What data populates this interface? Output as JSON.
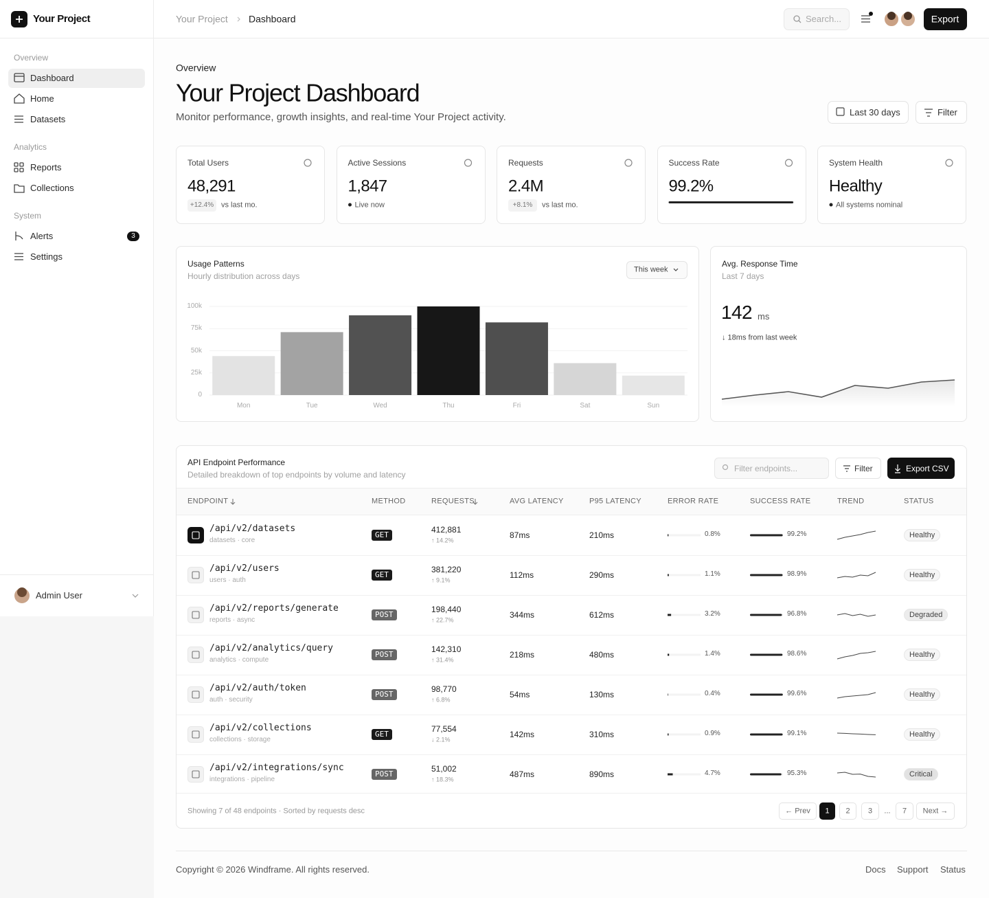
{
  "sidebar": {
    "brand": "Your Project",
    "sections": [
      {
        "title": "Overview",
        "items": [
          {
            "label": "Dashboard"
          },
          {
            "label": "Home"
          },
          {
            "label": "Datasets"
          }
        ]
      },
      {
        "title": "Analytics",
        "items": [
          {
            "label": "Reports"
          },
          {
            "label": "Collections"
          }
        ]
      },
      {
        "title": "System",
        "items": [
          {
            "label": "Alerts",
            "badge": "3"
          },
          {
            "label": "Settings"
          }
        ]
      }
    ],
    "user": "Admin User"
  },
  "header": {
    "breadcrumb": [
      "Your Project",
      "Dashboard"
    ],
    "search": "Search...",
    "export": "Export"
  },
  "page": {
    "eyebrow": "Overview",
    "title": "Your Project Dashboard",
    "subtitle": "Monitor performance, growth insights, and real-time Your Project activity.",
    "range": "Last 30 days",
    "filter": "Filter"
  },
  "stats": [
    {
      "label": "Total Users",
      "value": "48,291",
      "delta": "+12.4%",
      "note": "vs last mo."
    },
    {
      "label": "Active Sessions",
      "value": "1,847",
      "note": "Live now"
    },
    {
      "label": "Requests",
      "value": "2.4M",
      "delta": "+8.1%",
      "note": "vs last mo."
    },
    {
      "label": "Success Rate",
      "value": "99.2%"
    },
    {
      "label": "System Health",
      "value": "Healthy",
      "note": "All systems nominal"
    }
  ],
  "chart_data": [
    {
      "type": "bar",
      "title": "Usage Patterns",
      "subtitle": "Hourly distribution across days",
      "control": "This week",
      "categories": [
        "Mon",
        "Tue",
        "Wed",
        "Thu",
        "Fri",
        "Sat",
        "Sun"
      ],
      "values": [
        44000,
        71000,
        90000,
        100000,
        82000,
        36000,
        22000
      ],
      "colors": [
        "#e3e3e3",
        "#a3a3a3",
        "#525252",
        "#171717",
        "#4f4f4f",
        "#d6d6d6",
        "#e6e6e6"
      ],
      "ylim": [
        0,
        100000
      ],
      "yticks": [
        0,
        {
          "value": 25000,
          "label": "25k"
        },
        {
          "value": 50000,
          "label": "50k"
        },
        {
          "value": 75000,
          "label": "75k"
        },
        {
          "value": 100000,
          "label": "100k"
        }
      ],
      "grid": true
    },
    {
      "type": "line",
      "title": "Avg. Response Time",
      "subtitle": "Last 7 days",
      "value": "142",
      "unit": "ms",
      "note": "↓ 18ms from last week",
      "values": [
        109,
        115,
        120,
        112,
        129,
        125,
        134,
        137
      ],
      "ylim": [
        100,
        170
      ],
      "color": "#555555"
    }
  ],
  "table": {
    "title": "API Endpoint Performance",
    "subtitle": "Detailed breakdown of top endpoints by volume and latency",
    "search": "Filter endpoints...",
    "filter": "Filter",
    "export": "Export CSV",
    "columns": [
      "ENDPOINT",
      "METHOD",
      "REQUESTS",
      "AVG LATENCY",
      "P95 LATENCY",
      "ERROR RATE",
      "SUCCESS RATE",
      "TREND",
      "STATUS"
    ],
    "trend_ylim": [
      0,
      10
    ],
    "rows": [
      {
        "endpoint": "/api/v2/datasets",
        "tags": "datasets · core",
        "method": "GET",
        "requests": "412,881",
        "change": "↑ 14.2%",
        "avg": "87ms",
        "p95": "210ms",
        "error": "0.8%",
        "success": "99.2%",
        "trend": [
          2,
          3.5,
          4.5,
          5.5,
          7,
          8
        ],
        "status": "Healthy"
      },
      {
        "endpoint": "/api/v2/users",
        "tags": "users · auth",
        "method": "GET",
        "requests": "381,220",
        "change": "↑ 9.1%",
        "avg": "112ms",
        "p95": "290ms",
        "error": "1.1%",
        "success": "98.9%",
        "trend": [
          3,
          4,
          3.5,
          5,
          4.5,
          7
        ],
        "status": "Healthy"
      },
      {
        "endpoint": "/api/v2/reports/generate",
        "tags": "reports · async",
        "method": "POST",
        "requests": "198,440",
        "change": "↑ 22.7%",
        "avg": "344ms",
        "p95": "612ms",
        "error": "3.2%",
        "success": "96.8%",
        "trend": [
          5,
          6,
          4.5,
          5.5,
          4,
          5
        ],
        "status": "Degraded"
      },
      {
        "endpoint": "/api/v2/analytics/query",
        "tags": "analytics · compute",
        "method": "POST",
        "requests": "142,310",
        "change": "↑ 31.4%",
        "avg": "218ms",
        "p95": "480ms",
        "error": "1.4%",
        "success": "98.6%",
        "trend": [
          2,
          3.5,
          4.5,
          6,
          6.5,
          7.5
        ],
        "status": "Healthy"
      },
      {
        "endpoint": "/api/v2/auth/token",
        "tags": "auth · security",
        "method": "POST",
        "requests": "98,770",
        "change": "↑ 6.8%",
        "avg": "54ms",
        "p95": "130ms",
        "error": "0.4%",
        "success": "99.6%",
        "trend": [
          2.5,
          3.5,
          4,
          4.5,
          5,
          6.5
        ],
        "status": "Healthy"
      },
      {
        "endpoint": "/api/v2/collections",
        "tags": "collections · storage",
        "method": "GET",
        "requests": "77,554",
        "change": "↓ 2.1%",
        "avg": "142ms",
        "p95": "310ms",
        "error": "0.9%",
        "success": "99.1%",
        "trend": [
          6,
          5.8,
          5.5,
          5.3,
          5,
          4.8
        ],
        "status": "Healthy"
      },
      {
        "endpoint": "/api/v2/integrations/sync",
        "tags": "integrations · pipeline",
        "method": "POST",
        "requests": "51,002",
        "change": "↑ 18.3%",
        "avg": "487ms",
        "p95": "890ms",
        "error": "4.7%",
        "success": "95.3%",
        "trend": [
          6,
          6.5,
          5,
          5.2,
          3.5,
          3
        ],
        "status": "Critical"
      }
    ],
    "note": "Showing 7 of 48 endpoints · Sorted by requests desc",
    "pagination": [
      "← Prev",
      "1",
      "2",
      "3",
      "...",
      "7",
      "Next →"
    ]
  },
  "footer": {
    "copyright": "Copyright © 2026 Windframe. All rights reserved.",
    "links": [
      "Docs",
      "Support",
      "Status"
    ]
  }
}
